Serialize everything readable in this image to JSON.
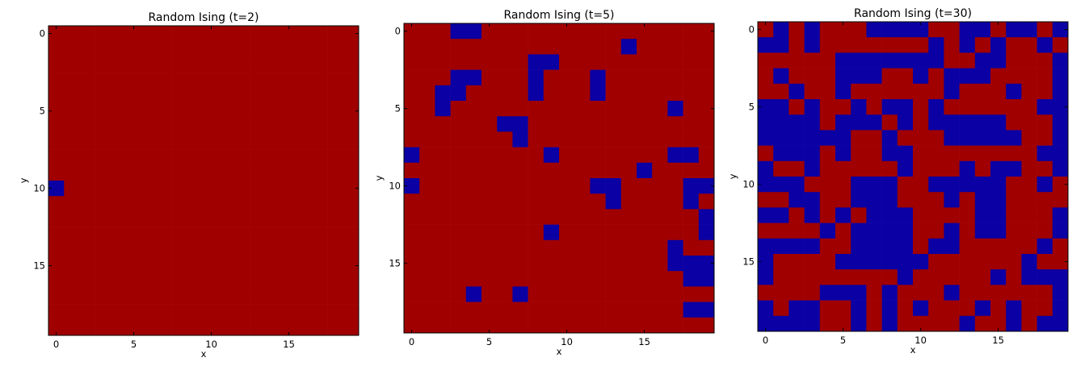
{
  "colors": {
    "spin_up": "#a00000",
    "spin_down": "#0b00a3"
  },
  "chart_data": [
    {
      "type": "heatmap",
      "title": "Random Ising (t=2)",
      "xlabel": "x",
      "ylabel": "y",
      "xticks": [
        0,
        5,
        10,
        15
      ],
      "yticks": [
        0,
        5,
        10,
        15
      ],
      "xlim": [
        -0.5,
        19.5
      ],
      "ylim": [
        19.5,
        -0.5
      ],
      "grid": false,
      "values": [
        "11111111111111111111",
        "11111111111111111111",
        "11111111111111111111",
        "11111111111111111111",
        "11111111111111111111",
        "11111111111111111111",
        "11111111111111111111",
        "11111111111111111111",
        "11111111111111111111",
        "11111111111111111111",
        "01111111111111111111",
        "11111111111111111111",
        "11111111111111111111",
        "11111111111111111111",
        "11111111111111111111",
        "11111111111111111111",
        "11111111111111111111",
        "11111111111111111111",
        "11111111111111111111",
        "11111111111111111111"
      ]
    },
    {
      "type": "heatmap",
      "title": "Random Ising (t=5)",
      "xlabel": "x",
      "ylabel": "y",
      "xticks": [
        0,
        5,
        10,
        15
      ],
      "yticks": [
        0,
        5,
        10,
        15
      ],
      "xlim": [
        -0.5,
        19.5
      ],
      "ylim": [
        19.5,
        -0.5
      ],
      "grid": false,
      "values": [
        "11100111111111111111",
        "11111111111111011111",
        "11111111001111111111",
        "11100111011101111111",
        "11001111011101111111",
        "11011111111111111011",
        "11111100111111111111",
        "11111110111111111111",
        "01111111101111111001",
        "11111111111111101111",
        "01111111111100111100",
        "11111111111110111101",
        "11111111111111111110",
        "11111111101111111110",
        "11111111111111111011",
        "11111111111111111000",
        "11111111111111111100",
        "11110110111111111111",
        "11111111111111111100",
        "11111111111111111111"
      ]
    },
    {
      "type": "heatmap",
      "title": "Random Ising (t=30)",
      "xlabel": "x",
      "ylabel": "y",
      "xticks": [
        0,
        5,
        10,
        15
      ],
      "yticks": [
        0,
        5,
        10,
        15
      ],
      "xlim": [
        -0.5,
        19.5
      ],
      "ylim": [
        19.5,
        -0.5
      ],
      "grid": false,
      "values": [
        "10101110000110010010",
        "00101111111010101101",
        "11111000000011001110",
        "10111000110100011110",
        "11011011111101110110",
        "00101101001011111100",
        "00001000101000001110",
        "00000011011100000110",
        "10001011001111111100",
        "01101111101110100110",
        "00011100011000001101",
        "11001100011101001111",
        "00101010001111001110",
        "11110100001101001110",
        "00001100001001111101",
        "01111000000111111011",
        "01111111101111101000",
        "11110001011101111110",
        "01001101010111010110",
        "00001101011110110100"
      ]
    }
  ]
}
